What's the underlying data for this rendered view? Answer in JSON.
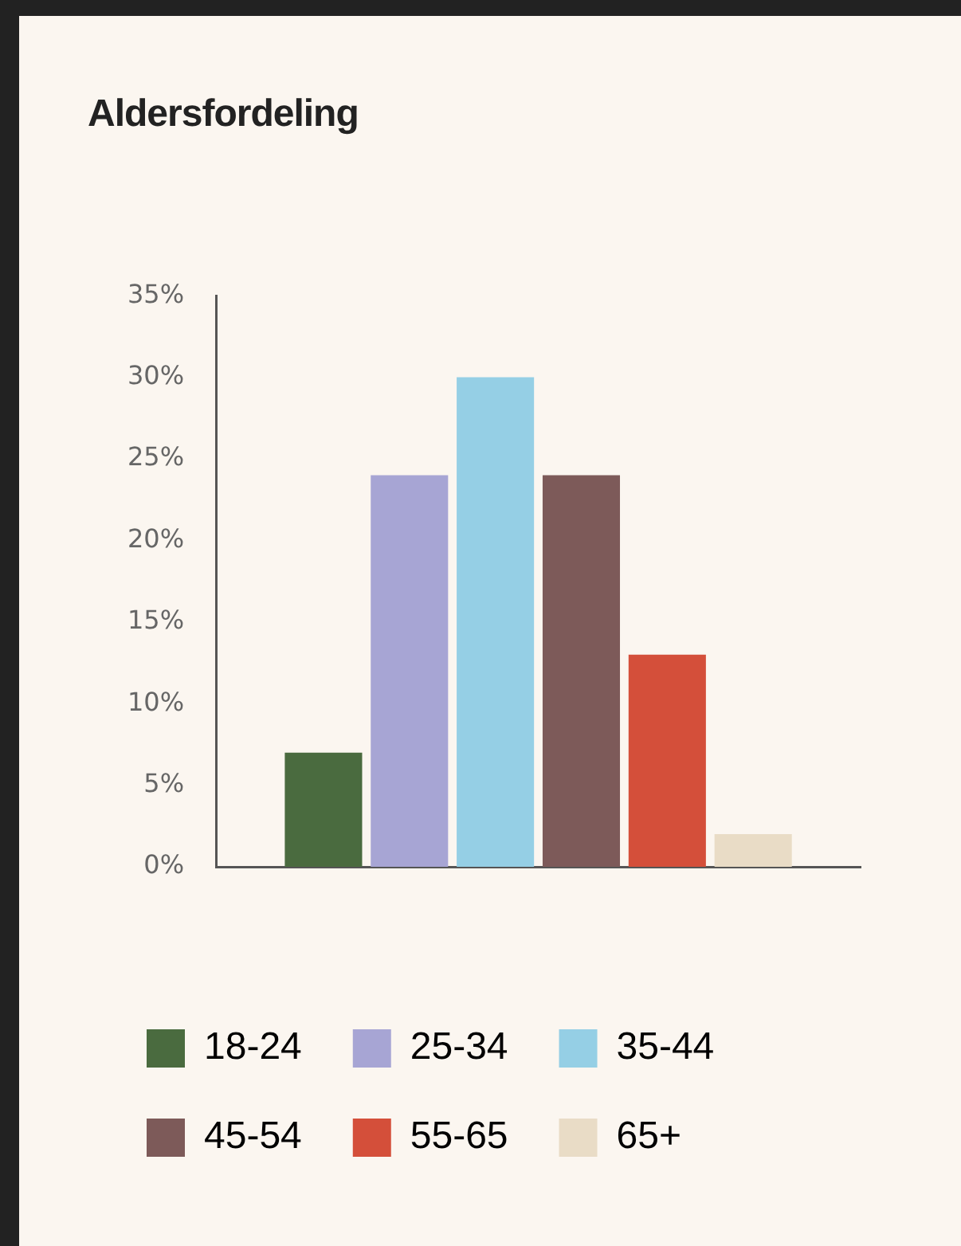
{
  "chart_data": {
    "type": "bar",
    "title": "Aldersfordeling",
    "categories": [
      null
    ],
    "series": [
      {
        "name": "18-24",
        "color": "#4a6b3f",
        "values": [
          7
        ]
      },
      {
        "name": "25-34",
        "color": "#a7a5d4",
        "values": [
          24
        ]
      },
      {
        "name": "35-44",
        "color": "#95cfe5",
        "values": [
          30
        ]
      },
      {
        "name": "45-54",
        "color": "#7d5a59",
        "values": [
          24
        ]
      },
      {
        "name": "55-65",
        "color": "#d44f3a",
        "values": [
          13
        ]
      },
      {
        "name": "65+",
        "color": "#e9dcc6",
        "values": [
          2
        ]
      }
    ],
    "ylim": [
      0,
      35
    ],
    "yticks": [
      {
        "value": 0,
        "label": "0%"
      },
      {
        "value": 5,
        "label": "5%"
      },
      {
        "value": 10,
        "label": "10%"
      },
      {
        "value": 15,
        "label": "15%"
      },
      {
        "value": 20,
        "label": "20%"
      },
      {
        "value": 25,
        "label": "25%"
      },
      {
        "value": 30,
        "label": "30%"
      },
      {
        "value": 35,
        "label": "35%"
      }
    ],
    "tick_labels": "y",
    "grid": false,
    "legend": "bottom"
  }
}
